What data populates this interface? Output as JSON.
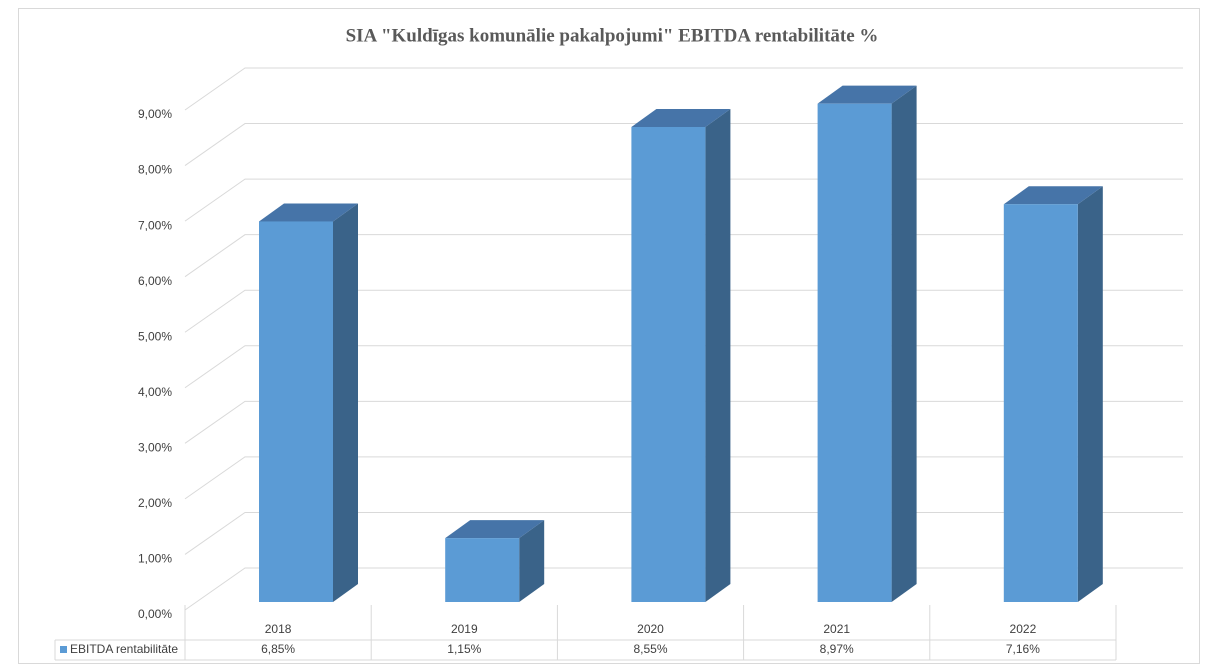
{
  "chart_data": {
    "type": "bar3d",
    "title": "SIA \"Kuldīgas komunālie pakalpojumi\" EBITDA rentabilitāte %",
    "categories": [
      "2018",
      "2019",
      "2020",
      "2021",
      "2022"
    ],
    "series": [
      {
        "name": "EBITDA rentabilitāte",
        "color": "#5b9bd5",
        "values": [
          6.85,
          1.15,
          8.55,
          8.97,
          7.16
        ],
        "value_labels": [
          "6,85%",
          "1,15%",
          "8,55%",
          "8,97%",
          "7,16%"
        ]
      }
    ],
    "ylim": [
      0,
      9
    ],
    "yticks": [
      {
        "value": 0,
        "label": "0,00%"
      },
      {
        "value": 1,
        "label": "1,00%"
      },
      {
        "value": 2,
        "label": "2,00%"
      },
      {
        "value": 3,
        "label": "3,00%"
      },
      {
        "value": 4,
        "label": "4,00%"
      },
      {
        "value": 5,
        "label": "5,00%"
      },
      {
        "value": 6,
        "label": "6,00%"
      },
      {
        "value": 7,
        "label": "7,00%"
      },
      {
        "value": 8,
        "label": "8,00%"
      },
      {
        "value": 9,
        "label": "9,00%"
      }
    ],
    "grid": true
  }
}
